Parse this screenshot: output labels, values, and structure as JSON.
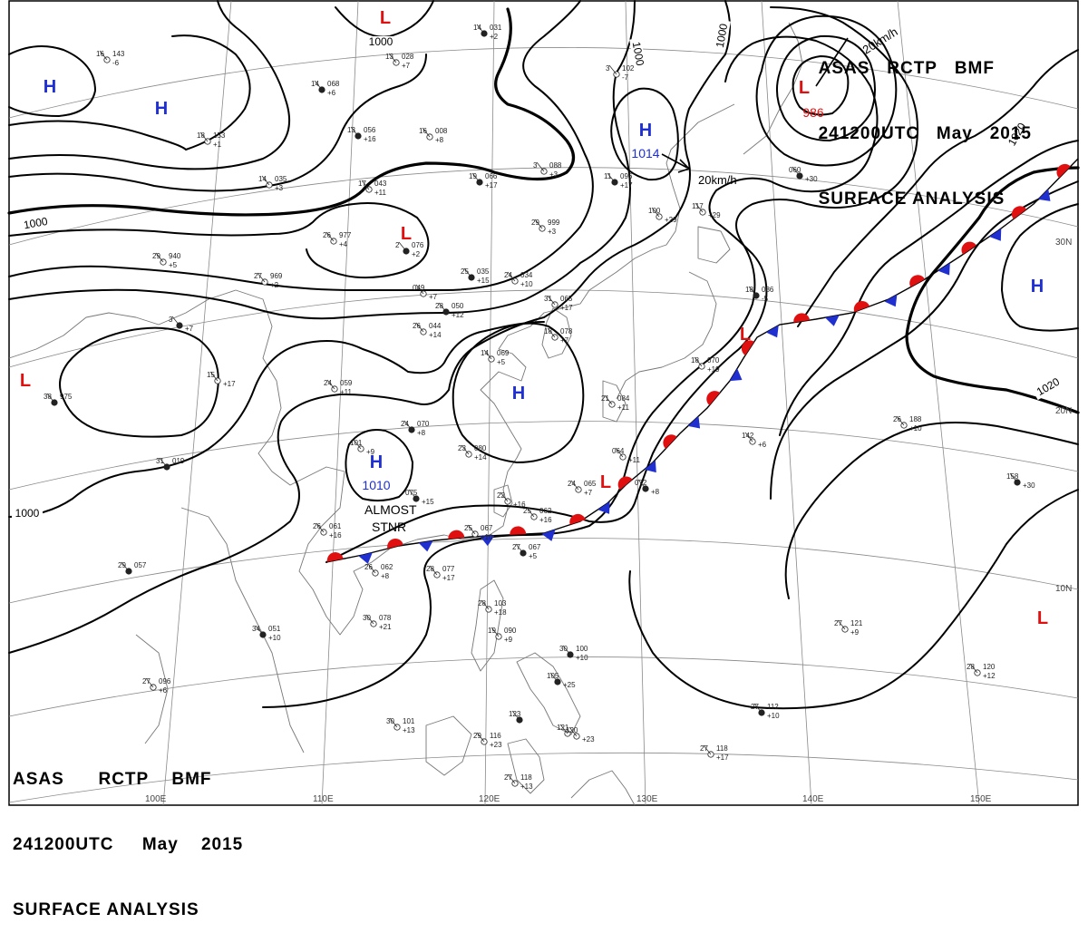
{
  "title": {
    "line1": [
      "ASAS",
      "RCTP",
      "BMF"
    ],
    "line2": [
      "241200UTC",
      "May",
      "2015"
    ],
    "line3": "SURFACE ANALYSIS"
  },
  "colors": {
    "high": "#1f2fd0",
    "low": "#e01010",
    "isobar": "#000000",
    "grid": "#888888",
    "coast": "#777777"
  },
  "pressure_centers": [
    {
      "type": "H",
      "value": ""
    },
    {
      "type": "H",
      "value": ""
    },
    {
      "type": "H",
      "value": "1014"
    },
    {
      "type": "H",
      "value": ""
    },
    {
      "type": "H",
      "value": "1010"
    },
    {
      "type": "H",
      "value": ""
    },
    {
      "type": "L",
      "value": ""
    },
    {
      "type": "L",
      "value": ""
    },
    {
      "type": "L",
      "value": "986"
    },
    {
      "type": "L",
      "value": ""
    },
    {
      "type": "L",
      "value": ""
    },
    {
      "type": "L",
      "value": ""
    },
    {
      "type": "L",
      "value": ""
    }
  ],
  "isobar_labels": [
    "1000",
    "1000",
    "1000",
    "1000",
    "1000",
    "1020",
    "1020"
  ],
  "motions": [
    "20km/h",
    "20km/h"
  ],
  "annotations": [
    "ALMOST",
    "STNR"
  ],
  "grid_labels": {
    "longitudes": [
      "100E",
      "110E",
      "120E",
      "130E",
      "140E",
      "150E"
    ],
    "latitudes": [
      "30N",
      "20N",
      "10N"
    ]
  },
  "stations": [
    {
      "t": "14",
      "p": "031",
      "d": "+2"
    },
    {
      "t": "16",
      "p": "143",
      "d": "-6"
    },
    {
      "t": "13",
      "p": "028",
      "d": "+7"
    },
    {
      "t": "14",
      "p": "068",
      "d": "+6"
    },
    {
      "t": "3",
      "p": "102",
      "d": "-7"
    },
    {
      "t": "18",
      "p": "153",
      "d": "+1"
    },
    {
      "t": "13",
      "p": "056",
      "d": "+16"
    },
    {
      "t": "16",
      "p": "008",
      "d": "+8"
    },
    {
      "t": "3",
      "p": "088",
      "d": "+3"
    },
    {
      "t": "11",
      "p": "096",
      "d": "+17"
    },
    {
      "t": "14",
      "p": "035",
      "d": "+3"
    },
    {
      "t": "17",
      "p": "043",
      "d": "+11"
    },
    {
      "t": "19",
      "p": "066",
      "d": "+17"
    },
    {
      "t": "100",
      "p": "",
      "d": "+29"
    },
    {
      "t": "117",
      "p": "",
      "d": "+29"
    },
    {
      "t": "060",
      "p": "",
      "d": "+30"
    },
    {
      "t": "29",
      "p": "940",
      "d": "+5"
    },
    {
      "t": "26",
      "p": "977",
      "d": "+4"
    },
    {
      "t": "2",
      "p": "076",
      "d": "+2"
    },
    {
      "t": "29",
      "p": "999",
      "d": "+3"
    },
    {
      "t": "27",
      "p": "969",
      "d": "+2"
    },
    {
      "t": "25",
      "p": "035",
      "d": "+15"
    },
    {
      "t": "24",
      "p": "034",
      "d": "+10"
    },
    {
      "t": "049",
      "p": "",
      "d": "+7"
    },
    {
      "t": "28",
      "p": "050",
      "d": "+12"
    },
    {
      "t": "31",
      "p": "065",
      "d": "+17"
    },
    {
      "t": "18",
      "p": "078",
      "d": "+7"
    },
    {
      "t": "18",
      "p": "086",
      "d": "-5"
    },
    {
      "t": "26",
      "p": "044",
      "d": "+14"
    },
    {
      "t": "14",
      "p": "069",
      "d": "+5"
    },
    {
      "t": "3",
      "p": "",
      "d": "+7"
    },
    {
      "t": "15",
      "p": "",
      "d": "+17"
    },
    {
      "t": "24",
      "p": "059",
      "d": "+11"
    },
    {
      "t": "38",
      "p": "975",
      "d": ""
    },
    {
      "t": "21",
      "p": "084",
      "d": "+11"
    },
    {
      "t": "18",
      "p": "070",
      "d": "+19"
    },
    {
      "t": "24",
      "p": "070",
      "d": "+8"
    },
    {
      "t": "101",
      "p": "",
      "d": "+9"
    },
    {
      "t": "23",
      "p": "080",
      "d": "+14"
    },
    {
      "t": "31",
      "p": "019",
      "d": ""
    },
    {
      "t": "142",
      "p": "",
      "d": "+6"
    },
    {
      "t": "26",
      "p": "188",
      "d": "+10"
    },
    {
      "t": "075",
      "p": "",
      "d": "+15"
    },
    {
      "t": "064",
      "p": "",
      "d": "+11"
    },
    {
      "t": "24",
      "p": "065",
      "d": "+7"
    },
    {
      "t": "072",
      "p": "",
      "d": "+8"
    },
    {
      "t": "22",
      "p": "",
      "d": "+16"
    },
    {
      "t": "25",
      "p": "062",
      "d": "+16"
    },
    {
      "t": "158",
      "p": "",
      "d": "+30"
    },
    {
      "t": "26",
      "p": "061",
      "d": "+16"
    },
    {
      "t": "25",
      "p": "067",
      "d": "+10"
    },
    {
      "t": "27",
      "p": "067",
      "d": "+5"
    },
    {
      "t": "26",
      "p": "062",
      "d": "+8"
    },
    {
      "t": "28",
      "p": "077",
      "d": "+17"
    },
    {
      "t": "29",
      "p": "057",
      "d": ""
    },
    {
      "t": "28",
      "p": "103",
      "d": "+18"
    },
    {
      "t": "30",
      "p": "078",
      "d": "+21"
    },
    {
      "t": "34",
      "p": "051",
      "d": "+10"
    },
    {
      "t": "19",
      "p": "090",
      "d": "+9"
    },
    {
      "t": "27",
      "p": "121",
      "d": "+9"
    },
    {
      "t": "30",
      "p": "100",
      "d": "+10"
    },
    {
      "t": "27",
      "p": "096",
      "d": "+6"
    },
    {
      "t": "28",
      "p": "120",
      "d": "+12"
    },
    {
      "t": "105",
      "p": "",
      "d": "+25"
    },
    {
      "t": "30",
      "p": "101",
      "d": "+13"
    },
    {
      "t": "29",
      "p": "116",
      "d": "+23"
    },
    {
      "t": "123",
      "p": "",
      "d": ""
    },
    {
      "t": "121",
      "p": "",
      "d": ""
    },
    {
      "t": "120",
      "p": "",
      "d": "+23"
    },
    {
      "t": "27",
      "p": "112",
      "d": "+10"
    },
    {
      "t": "27",
      "p": "118",
      "d": "+17"
    },
    {
      "t": "27",
      "p": "118",
      "d": "+13"
    }
  ]
}
